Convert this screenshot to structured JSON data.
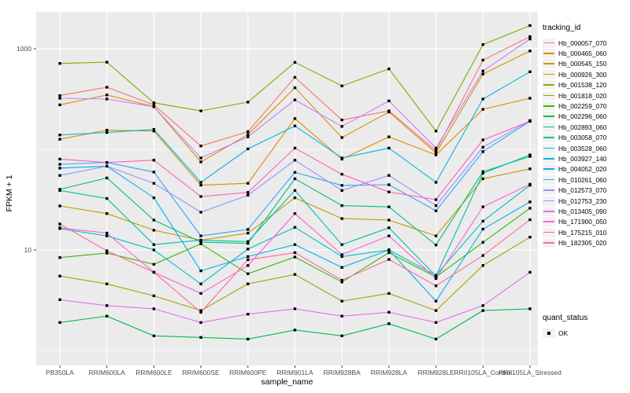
{
  "axes": {
    "y_title": "FPKM + 1",
    "x_title": "sample_name",
    "y_ticks": [
      {
        "label": "1000",
        "value": 1000
      },
      {
        "label": "10",
        "value": 10
      }
    ]
  },
  "legend": {
    "title": "tracking_id",
    "quant_title": "quant_status",
    "quant_items": [
      {
        "label": "OK"
      }
    ]
  },
  "style": {
    "panel_bg": "#EBEBEB",
    "grid_color": "#FFFFFF",
    "marker_color": "#000000",
    "tick_text_color": "#4D4D4D",
    "axis_tick_color": "#333333",
    "legend_key_bg": "#F2F2F2"
  },
  "chart_data": {
    "type": "line",
    "title": "",
    "xlabel": "sample_name",
    "ylabel": "FPKM + 1",
    "y_scale": "log10",
    "ylim": [
      1,
      2000
    ],
    "grid": true,
    "legend_position": "right",
    "legend_title": "tracking_id",
    "quant_status_legend": {
      "title": "quant_status",
      "values": [
        "OK"
      ]
    },
    "marker": "black-point",
    "categories": [
      "PB350LA",
      "RRIM600LA",
      "RRIM600LE",
      "RRIM600SE",
      "RRIM600PE",
      "RRIM901LA",
      "RRIM928BA",
      "RRIM928LA",
      "RRIM928LE",
      "RRII105LA_Control",
      "RRII105LA_Stressed"
    ],
    "major_gridline_values": [
      10,
      1000
    ],
    "minor_gridline_values": [
      1,
      100
    ],
    "series": [
      {
        "name": "Hb_000057_070",
        "color": "#F8766D",
        "values": [
          342,
          414,
          277,
          108,
          150,
          520,
          196,
          241,
          97,
          770,
          1320
        ]
      },
      {
        "name": "Hb_000465_060",
        "color": "#E58700",
        "values": [
          126,
          155,
          152,
          44,
          46,
          202,
          80,
          133,
          88,
          250,
          322
        ]
      },
      {
        "name": "Hb_000545_150",
        "color": "#D89000",
        "values": [
          277,
          347,
          266,
          75,
          140,
          410,
          131,
          235,
          92,
          560,
          950
        ]
      },
      {
        "name": "Hb_000926_300",
        "color": "#C09B00",
        "values": [
          27.4,
          23,
          15.7,
          12.5,
          14.7,
          33,
          20.5,
          19.8,
          13.8,
          51,
          64
        ]
      },
      {
        "name": "Hb_001538_120",
        "color": "#A3A500",
        "values": [
          5.5,
          4.6,
          3.5,
          2.5,
          4.6,
          5.7,
          3.1,
          3.7,
          2.5,
          7,
          13.4
        ]
      },
      {
        "name": "Hb_001818_020",
        "color": "#7CAE00",
        "values": [
          714,
          735,
          290,
          241,
          295,
          733,
          427,
          631,
          152,
          1100,
          1700
        ]
      },
      {
        "name": "Hb_002259_070",
        "color": "#39B600",
        "values": [
          8.4,
          9.3,
          7.2,
          11.5,
          5.8,
          8.5,
          4.8,
          9.4,
          5.4,
          11.9,
          26
        ]
      },
      {
        "name": "Hb_002296_060",
        "color": "#00BB4E",
        "values": [
          1.9,
          2.2,
          1.4,
          1.35,
          1.3,
          1.6,
          1.4,
          1.85,
          1.3,
          2.5,
          2.6
        ]
      },
      {
        "name": "Hb_002893_060",
        "color": "#00BF7D",
        "values": [
          40,
          52,
          19.8,
          12,
          11.6,
          51,
          27.6,
          26.8,
          11.2,
          60,
          85
        ]
      },
      {
        "name": "Hb_003058_070",
        "color": "#00C1A3",
        "values": [
          39,
          32.5,
          11.3,
          12.5,
          12.1,
          39,
          11.3,
          16.6,
          5.5,
          58,
          88
        ]
      },
      {
        "name": "Hb_003528_060",
        "color": "#00BFC4",
        "values": [
          16.3,
          13.8,
          10,
          4.6,
          10.2,
          16.8,
          8.6,
          10,
          5.6,
          19.3,
          44
        ]
      },
      {
        "name": "Hb_003927_140",
        "color": "#00BAE0",
        "values": [
          139,
          147,
          158,
          47,
          101,
          171,
          82,
          103,
          47,
          316,
          590
        ]
      },
      {
        "name": "Hb_004052_020",
        "color": "#00B0F6",
        "values": [
          65,
          68,
          33,
          6.2,
          8.6,
          11.3,
          6.7,
          10,
          3.1,
          16.1,
          30
        ]
      },
      {
        "name": "Hb_010261_060",
        "color": "#35A2FF",
        "values": [
          71,
          74,
          59.5,
          13.8,
          16,
          59,
          43.8,
          44.5,
          24.5,
          95,
          190
        ]
      },
      {
        "name": "Hb_012573_070",
        "color": "#9590FF",
        "values": [
          55,
          68,
          46,
          23.7,
          35,
          78,
          39,
          55,
          27.6,
          105,
          193
        ]
      },
      {
        "name": "Hb_012753_230",
        "color": "#C77CFF",
        "values": [
          322,
          316,
          265,
          82,
          133,
          310,
          169,
          303,
          103,
          600,
          1250
        ]
      },
      {
        "name": "Hb_013405_090",
        "color": "#E76BF3",
        "values": [
          3.2,
          2.8,
          2.6,
          1.9,
          2.3,
          2.6,
          2.2,
          2.4,
          1.9,
          2.8,
          6
        ]
      },
      {
        "name": "Hb_171900_050",
        "color": "#FA62DB",
        "values": [
          16.6,
          14.7,
          6,
          3.7,
          7,
          23,
          9,
          13.8,
          5.2,
          26.8,
          45
        ]
      },
      {
        "name": "Hb_175215_010",
        "color": "#FF62BC",
        "values": [
          80,
          74,
          78,
          34,
          37.3,
          103,
          56.5,
          37.7,
          31.6,
          124,
          190
        ]
      },
      {
        "name": "Hb_182305_020",
        "color": "#FF6A98",
        "values": [
          18.1,
          9.8,
          6,
          2.4,
          8,
          9.4,
          5,
          8.05,
          4.4,
          8.8,
          20
        ]
      }
    ]
  }
}
